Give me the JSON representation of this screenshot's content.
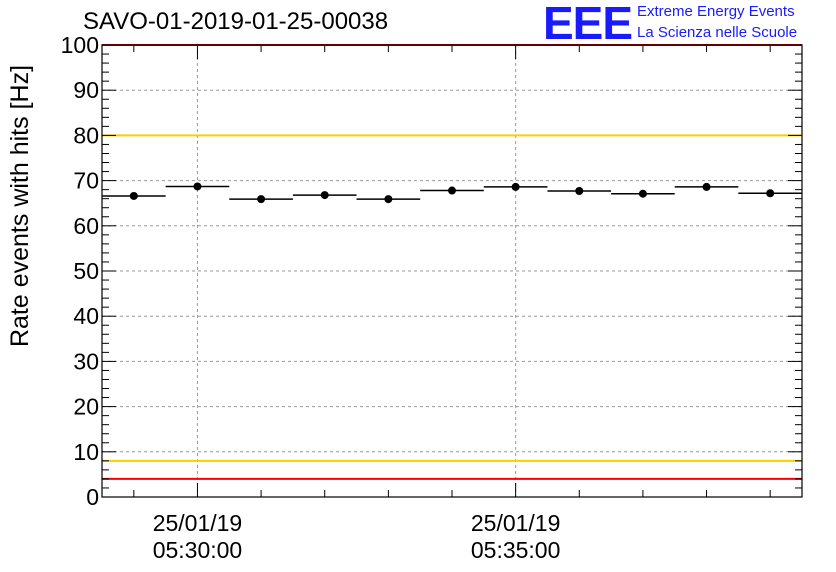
{
  "header": {
    "title": "SAVO-01-2019-01-25-00038",
    "logo_text": "EEE",
    "logo_line1": "Extreme Energy Events",
    "logo_line2": "La Scienza nelle Scuole"
  },
  "chart_data": {
    "type": "scatter",
    "title": "SAVO-01-2019-01-25-00038",
    "ylabel": "Rate events with hits [Hz]",
    "xlabel": "",
    "ylim": [
      0,
      100
    ],
    "xlim": [
      "2019-01-25 05:28:30",
      "2019-01-25 05:39:30"
    ],
    "yticks": [
      0,
      10,
      20,
      30,
      40,
      50,
      60,
      70,
      80,
      90,
      100
    ],
    "xticks": [
      {
        "date": "25/01/19",
        "time": "05:30:00"
      },
      {
        "date": "25/01/19",
        "time": "05:35:00"
      }
    ],
    "grid": true,
    "bin_width_seconds": 60,
    "points": [
      {
        "x": "05:29:00",
        "y": 66.6
      },
      {
        "x": "05:30:00",
        "y": 68.7
      },
      {
        "x": "05:31:00",
        "y": 65.9
      },
      {
        "x": "05:32:00",
        "y": 66.8
      },
      {
        "x": "05:33:00",
        "y": 65.9
      },
      {
        "x": "05:34:00",
        "y": 67.8
      },
      {
        "x": "05:35:00",
        "y": 68.6
      },
      {
        "x": "05:36:00",
        "y": 67.7
      },
      {
        "x": "05:37:00",
        "y": 67.1
      },
      {
        "x": "05:38:00",
        "y": 68.6
      },
      {
        "x": "05:39:00",
        "y": 67.2
      }
    ],
    "reference_lines": [
      {
        "y": 100,
        "color": "#ff0000"
      },
      {
        "y": 80,
        "color": "#ffcc00"
      },
      {
        "y": 8,
        "color": "#ffcc00"
      },
      {
        "y": 4,
        "color": "#ff0000"
      }
    ]
  }
}
